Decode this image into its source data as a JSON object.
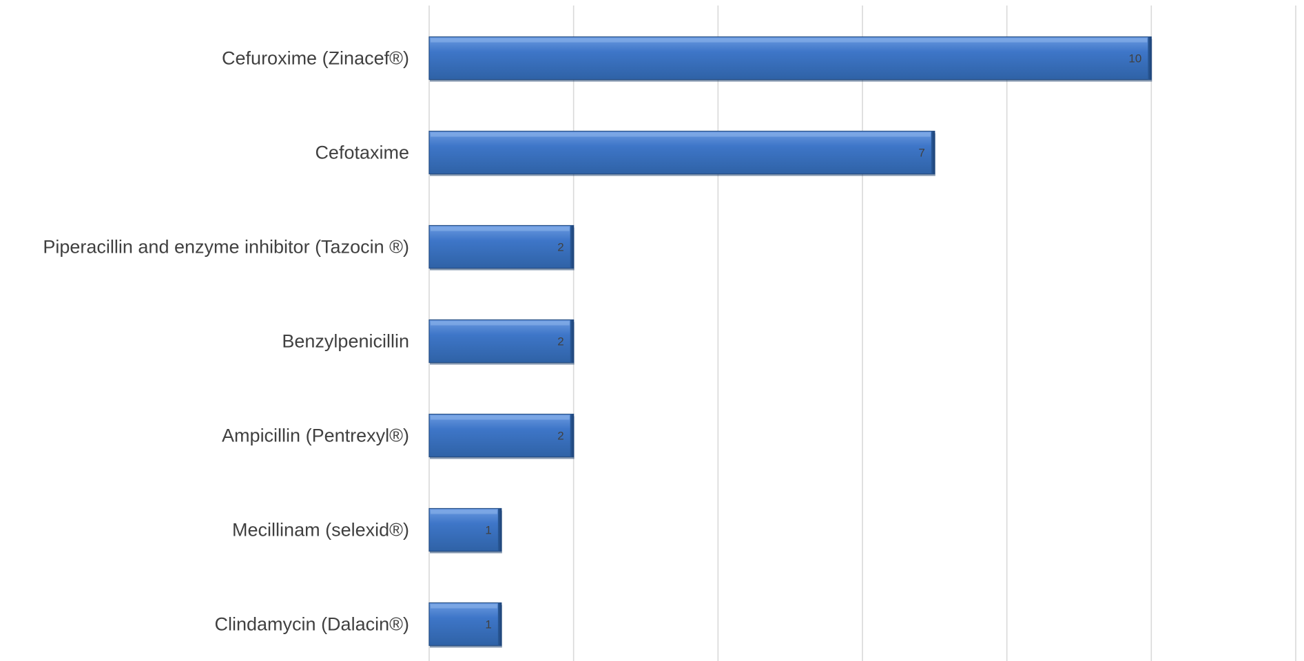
{
  "chart_data": {
    "type": "bar",
    "orientation": "horizontal",
    "title": "",
    "xlabel": "",
    "ylabel": "",
    "categories": [
      "Cefuroxime (Zinacef®)",
      "Cefotaxime",
      "Piperacillin and enzyme inhibitor (Tazocin ®)",
      "Benzylpenicillin",
      "Ampicillin (Pentrexyl®)",
      "Mecillinam (selexid®)",
      "Clindamycin (Dalacin®)"
    ],
    "values": [
      10,
      7,
      2,
      2,
      2,
      1,
      1
    ],
    "data_labels": [
      "10",
      "7",
      "2",
      "2",
      "2",
      "1",
      "1"
    ],
    "xlim": [
      0,
      12
    ],
    "gridlines_at": [
      0,
      2,
      4,
      6,
      8,
      10,
      12
    ],
    "grid": true,
    "legend": "none",
    "colors": {
      "bar_light": "#5b8fd6",
      "bar_mid": "#3a72c4",
      "bar_dark": "#2e5f9e",
      "bar_edge": "#254e85",
      "bar_shadow": "#1e3f6b"
    }
  }
}
